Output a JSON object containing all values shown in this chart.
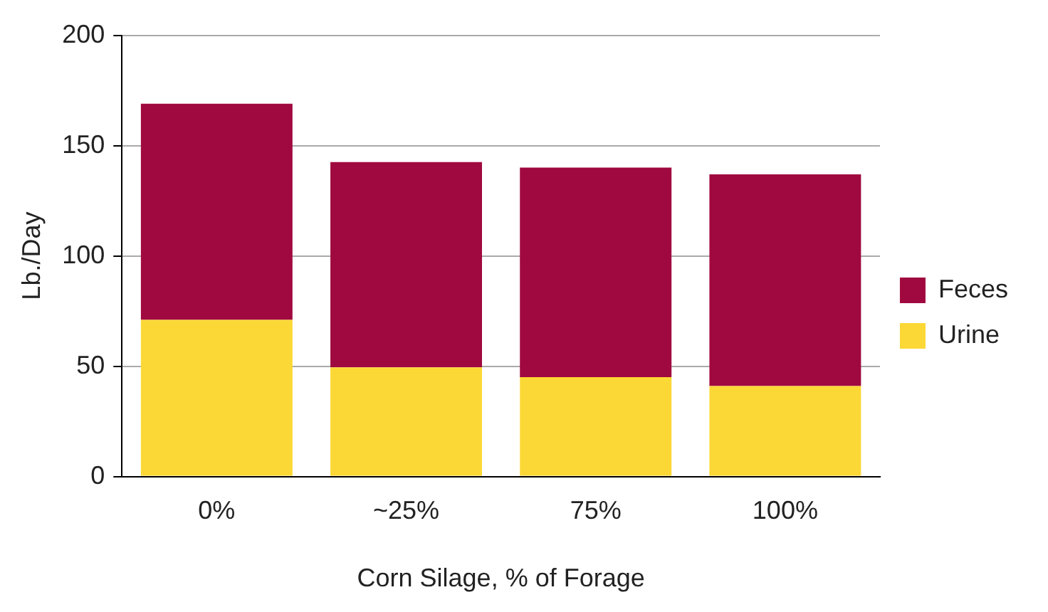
{
  "chart_data": {
    "type": "bar",
    "stacked": true,
    "xlabel": "Corn Silage, % of Forage",
    "ylabel": "Lb./Day",
    "categories": [
      "0%",
      "~25%",
      "75%",
      "100%"
    ],
    "series": [
      {
        "name": "Urine",
        "color": "#fcd836",
        "values": [
          71,
          49.5,
          45,
          41
        ]
      },
      {
        "name": "Feces",
        "color": "#a0093f",
        "values": [
          98,
          93,
          95,
          96
        ]
      }
    ],
    "ylim": [
      0,
      200
    ],
    "yticks": [
      0,
      50,
      100,
      150,
      200
    ],
    "grid": "y",
    "legend": "right"
  }
}
